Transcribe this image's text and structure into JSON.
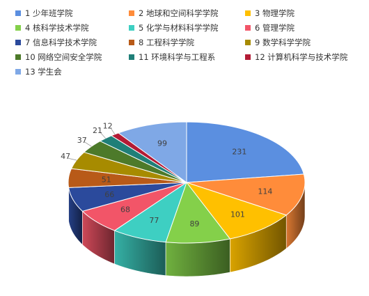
{
  "chart_data": {
    "type": "pie",
    "style": "3d",
    "title": "",
    "legend_position": "top",
    "series": [
      {
        "label": "1 少年班学院",
        "value": 231,
        "color": "#5b8fe0"
      },
      {
        "label": "2 地球和空间科学学院",
        "value": 114,
        "color": "#ff8c3a"
      },
      {
        "label": "3 物理学院",
        "value": 101,
        "color": "#ffc000"
      },
      {
        "label": "4 核科学技术学院",
        "value": 89,
        "color": "#84d04a"
      },
      {
        "label": "5 化学与材料科学学院",
        "value": 77,
        "color": "#3ecfc2"
      },
      {
        "label": "6 管理学院",
        "value": 68,
        "color": "#f25568"
      },
      {
        "label": "7 信息科学技术学院",
        "value": 66,
        "color": "#2b4a9c"
      },
      {
        "label": "8 工程科学学院",
        "value": 51,
        "color": "#b85a18"
      },
      {
        "label": "9 数学科学学院",
        "value": 47,
        "color": "#a78b00"
      },
      {
        "label": "10 网络空间安全学院",
        "value": 37,
        "color": "#4d7a2a"
      },
      {
        "label": "11 环境科学与工程系",
        "value": 21,
        "color": "#1f7f78"
      },
      {
        "label": "12 计算机科学与技术学院",
        "value": 12,
        "color": "#b31b35"
      },
      {
        "label": "13 学生会",
        "value": 99,
        "color": "#7fa8e6"
      }
    ]
  }
}
